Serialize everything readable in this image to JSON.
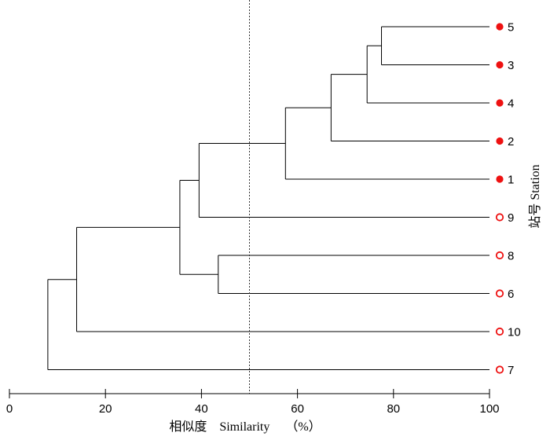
{
  "chart_data": {
    "type": "dendrogram",
    "orientation": "horizontal",
    "xlabel": "相似度    Similarity     （%）",
    "ylabel": "站号 Station",
    "xlim": [
      0,
      100
    ],
    "xticks": [
      0,
      20,
      40,
      60,
      80,
      100
    ],
    "threshold_line": {
      "x": 50,
      "style": "dotted"
    },
    "leaves": [
      {
        "label": "5",
        "marker": "filled"
      },
      {
        "label": "3",
        "marker": "filled"
      },
      {
        "label": "4",
        "marker": "filled"
      },
      {
        "label": "2",
        "marker": "filled"
      },
      {
        "label": "1",
        "marker": "filled"
      },
      {
        "label": "9",
        "marker": "open"
      },
      {
        "label": "8",
        "marker": "open"
      },
      {
        "label": "6",
        "marker": "open"
      },
      {
        "label": "10",
        "marker": "open"
      },
      {
        "label": "7",
        "marker": "open"
      }
    ],
    "merges": [
      {
        "left": "L0",
        "right": "L1",
        "similarity": 77.5
      },
      {
        "left": "M0",
        "right": "L2",
        "similarity": 74.5
      },
      {
        "left": "M1",
        "right": "L3",
        "similarity": 67.0
      },
      {
        "left": "M2",
        "right": "L4",
        "similarity": 57.5
      },
      {
        "left": "M3",
        "right": "L5",
        "similarity": 39.5
      },
      {
        "left": "L6",
        "right": "L7",
        "similarity": 43.5
      },
      {
        "left": "M4",
        "right": "M5",
        "similarity": 35.5
      },
      {
        "left": "M6",
        "right": "L8",
        "similarity": 14.0
      },
      {
        "left": "M7",
        "right": "L9",
        "similarity": 8.0
      }
    ],
    "colors": {
      "marker": "#ee1111",
      "lines": "#000000"
    }
  }
}
